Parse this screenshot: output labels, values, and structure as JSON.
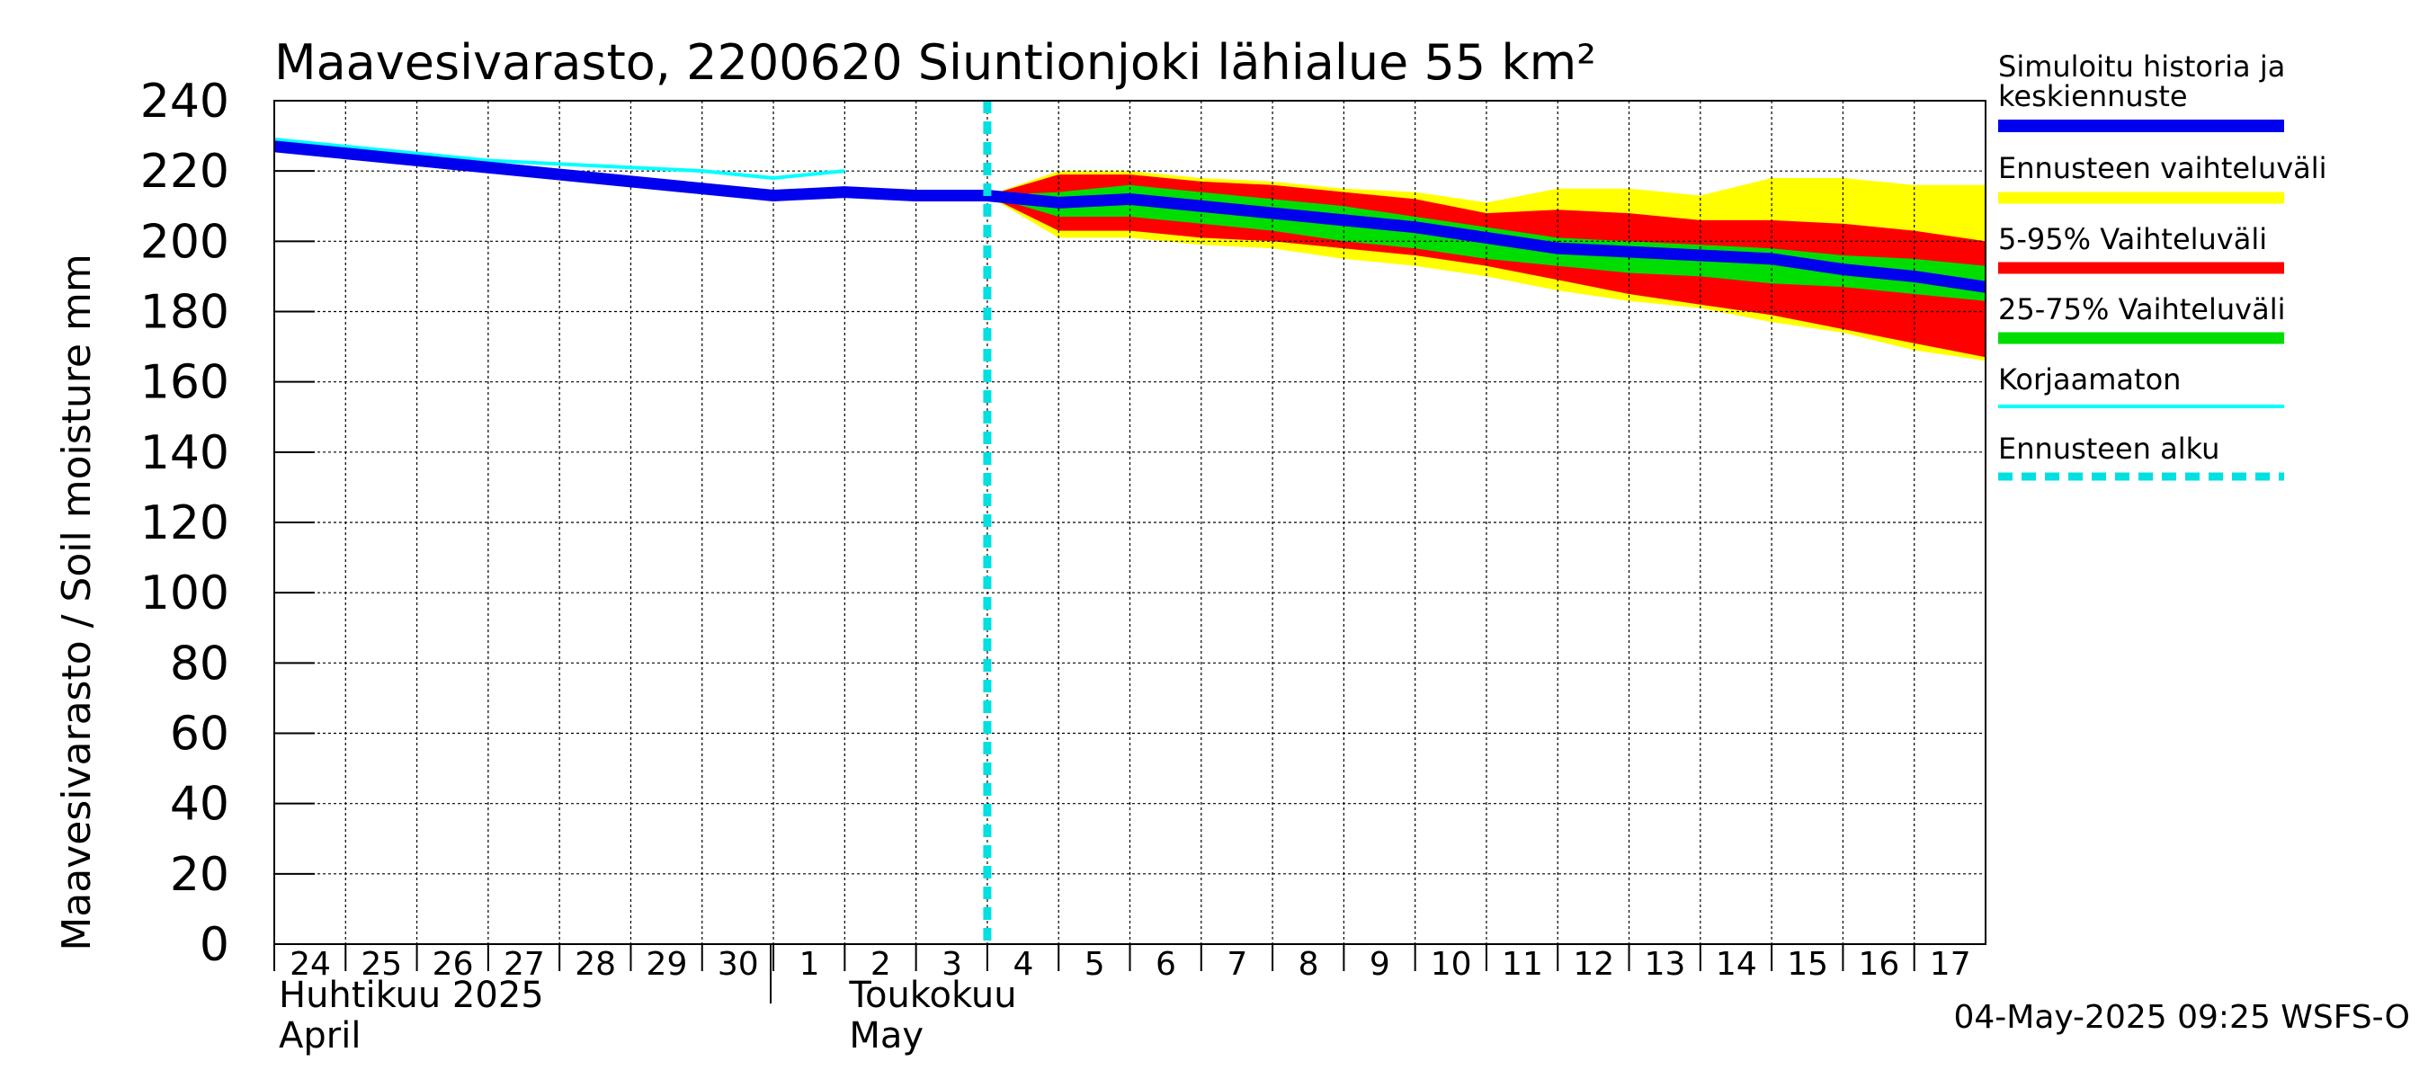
{
  "chart_data": {
    "type": "area",
    "title": "Maavesivarasto, 2200620 Siuntionjoki lähialue 55 km²",
    "ylabel": "Maavesivarasto / Soil moisture   mm",
    "ylim": [
      0,
      240
    ],
    "yticks": [
      0,
      20,
      40,
      60,
      80,
      100,
      120,
      140,
      160,
      180,
      200,
      220,
      240
    ],
    "xlim": [
      0,
      24
    ],
    "x_day_labels": [
      {
        "x": 0,
        "label": "24"
      },
      {
        "x": 1,
        "label": "25"
      },
      {
        "x": 2,
        "label": "26"
      },
      {
        "x": 3,
        "label": "27"
      },
      {
        "x": 4,
        "label": "28"
      },
      {
        "x": 5,
        "label": "29"
      },
      {
        "x": 6,
        "label": "30"
      },
      {
        "x": 7,
        "label": "1"
      },
      {
        "x": 8,
        "label": "2"
      },
      {
        "x": 9,
        "label": "3"
      },
      {
        "x": 10,
        "label": "4"
      },
      {
        "x": 11,
        "label": "5"
      },
      {
        "x": 12,
        "label": "6"
      },
      {
        "x": 13,
        "label": "7"
      },
      {
        "x": 14,
        "label": "8"
      },
      {
        "x": 15,
        "label": "9"
      },
      {
        "x": 16,
        "label": "10"
      },
      {
        "x": 17,
        "label": "11"
      },
      {
        "x": 18,
        "label": "12"
      },
      {
        "x": 19,
        "label": "13"
      },
      {
        "x": 20,
        "label": "14"
      },
      {
        "x": 21,
        "label": "15"
      },
      {
        "x": 22,
        "label": "16"
      },
      {
        "x": 23,
        "label": "17"
      }
    ],
    "month_labels": [
      {
        "x": 0,
        "fi": "Huhtikuu  2025",
        "en": "April"
      },
      {
        "x": 8,
        "fi": "Toukokuu",
        "en": "May"
      }
    ],
    "month_boundary_x": 7,
    "forecast_start_x": 10,
    "legend": [
      {
        "key": "sim",
        "label": "Simuloitu historia ja keskiennuste",
        "color": "#0000ee"
      },
      {
        "key": "range",
        "label": "Ennusteen vaihteluväli",
        "color": "#ffff00"
      },
      {
        "key": "p5_95",
        "label": "5-95% Vaihteluväli",
        "color": "#ff0000"
      },
      {
        "key": "p25_75",
        "label": "25-75% Vaihteluväli",
        "color": "#00dd00"
      },
      {
        "key": "uncorrected",
        "label": "Korjaamaton",
        "color": "#00ffff"
      },
      {
        "key": "fstart",
        "label": "Ennusteen alku",
        "color": "#00e0e0"
      }
    ],
    "series": [
      {
        "name": "Ennusteen vaihteluväli",
        "key": "range",
        "x": [
          10,
          11,
          12,
          13,
          14,
          15,
          16,
          17,
          18,
          19,
          20,
          21,
          22,
          23,
          24
        ],
        "upper": [
          213,
          220,
          220,
          218,
          217,
          215,
          214,
          211,
          215,
          215,
          213,
          218,
          218,
          216,
          216
        ],
        "lower": [
          213,
          201,
          201,
          199,
          198,
          195,
          193,
          190,
          186,
          183,
          181,
          177,
          174,
          169,
          166
        ]
      },
      {
        "name": "5-95% Vaihteluväli",
        "key": "p5_95",
        "x": [
          10,
          11,
          12,
          13,
          14,
          15,
          16,
          17,
          18,
          19,
          20,
          21,
          22,
          23,
          24
        ],
        "upper": [
          213,
          219,
          219,
          217,
          216,
          214,
          212,
          208,
          209,
          208,
          206,
          206,
          205,
          203,
          200
        ],
        "lower": [
          213,
          203,
          203,
          201,
          200,
          198,
          196,
          193,
          189,
          185,
          182,
          179,
          175,
          171,
          167
        ]
      },
      {
        "name": "25-75% Vaihteluväli",
        "key": "p25_75",
        "x": [
          10,
          11,
          12,
          13,
          14,
          15,
          16,
          17,
          18,
          19,
          20,
          21,
          22,
          23,
          24
        ],
        "upper": [
          213,
          214,
          216,
          214,
          212,
          210,
          207,
          204,
          201,
          200,
          199,
          198,
          196,
          195,
          193
        ],
        "lower": [
          213,
          207,
          207,
          205,
          203,
          200,
          198,
          195,
          193,
          191,
          190,
          188,
          187,
          185,
          183
        ]
      },
      {
        "name": "Korjaamaton",
        "key": "uncorrected",
        "x": [
          0,
          1,
          2,
          3,
          4,
          5,
          6,
          7,
          8
        ],
        "values": [
          229,
          227,
          225,
          223,
          222,
          221,
          220,
          218,
          220
        ]
      },
      {
        "name": "Simuloitu historia ja keskiennuste",
        "key": "sim",
        "x": [
          0,
          1,
          2,
          3,
          4,
          5,
          6,
          7,
          8,
          9,
          10,
          11,
          12,
          13,
          14,
          15,
          16,
          17,
          18,
          19,
          20,
          21,
          22,
          23,
          24
        ],
        "values": [
          227,
          225,
          223,
          221,
          219,
          217,
          215,
          213,
          214,
          213,
          213,
          211,
          212,
          210,
          208,
          206,
          204,
          201,
          198,
          197,
          196,
          195,
          192,
          190,
          187
        ]
      }
    ],
    "timestamp": "04-May-2025 09:25 WSFS-O"
  }
}
